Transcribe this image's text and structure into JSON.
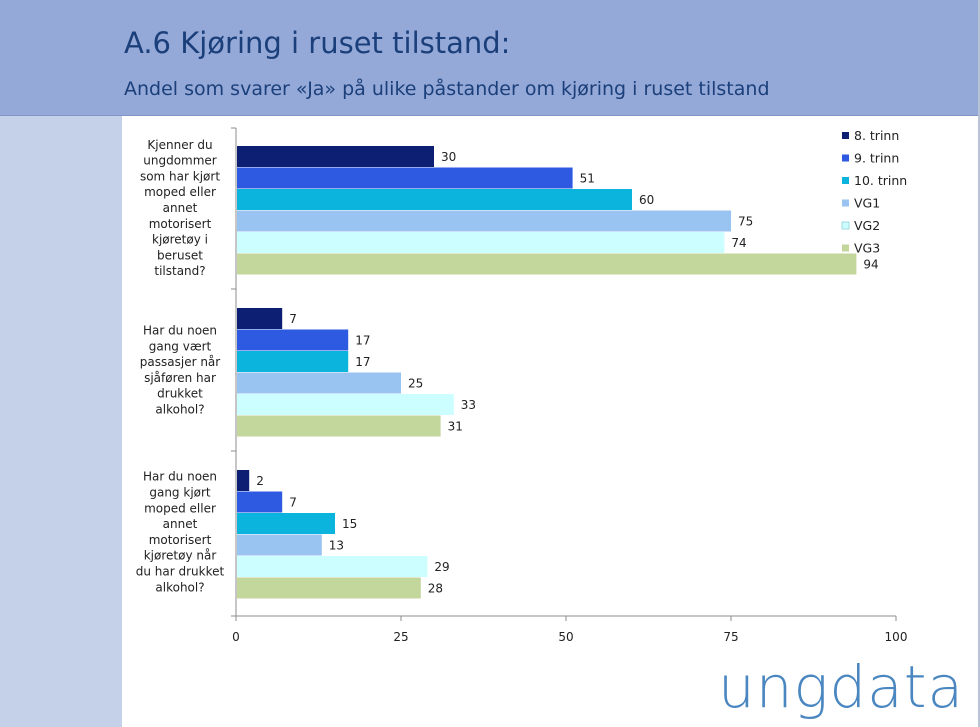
{
  "header": {
    "title": "A.6 Kjøring i ruset tilstand:",
    "subtitle": "Andel som svarer «Ja» på ulike påstander om kjøring i ruset tilstand"
  },
  "logo": {
    "text": "ungdata",
    "color": "#4a86c0"
  },
  "colors": {
    "header_bg": "#95a9d8",
    "title": "#1a3f7a",
    "sidebar": "#c5d1e8"
  },
  "chart_data": {
    "type": "bar",
    "orientation": "horizontal",
    "title": "",
    "xlabel": "",
    "ylabel": "",
    "xlim": [
      0,
      100
    ],
    "xticks": [
      0,
      25,
      50,
      75,
      100
    ],
    "legend_position": "top-right",
    "categories": [
      [
        "Kjenner du",
        "ungdommer",
        "som har kjørt",
        "moped eller",
        "annet",
        "motorisert",
        "kjøretøy i",
        "beruset",
        "tilstand?"
      ],
      [
        "Har du noen",
        "gang vært",
        "passasjer når",
        "sjåføren har",
        "drukket",
        "alkohol?"
      ],
      [
        "Har du noen",
        "gang kjørt",
        "moped eller",
        "annet",
        "motorisert",
        "kjøretøy når",
        "du har drukket",
        "alkohol?"
      ]
    ],
    "series": [
      {
        "name": "8. trinn",
        "color": "#0d1f73",
        "values": [
          30,
          7,
          2
        ]
      },
      {
        "name": "9. trinn",
        "color": "#2d5ae0",
        "values": [
          51,
          17,
          7
        ]
      },
      {
        "name": "10. trinn",
        "color": "#0ab4dc",
        "values": [
          60,
          17,
          15
        ]
      },
      {
        "name": "VG1",
        "color": "#99c3f0",
        "values": [
          75,
          25,
          13
        ]
      },
      {
        "name": "VG2",
        "color": "#ccfdff",
        "values": [
          74,
          33,
          29
        ]
      },
      {
        "name": "VG3",
        "color": "#c3d69c",
        "values": [
          94,
          31,
          28
        ]
      }
    ]
  }
}
